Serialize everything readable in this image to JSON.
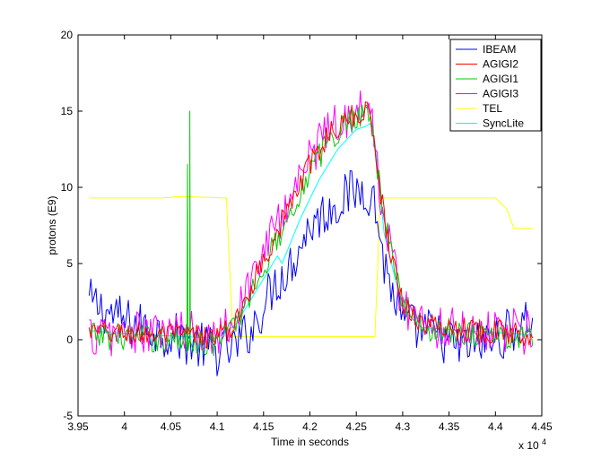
{
  "chart_data": {
    "type": "line",
    "title": "",
    "xlabel": "Time in seconds",
    "ylabel": "protons (E9)",
    "x_multiplier_label": "x 10",
    "x_multiplier_exp": "4",
    "xlim": [
      3.95,
      4.45
    ],
    "ylim": [
      -5,
      20
    ],
    "xticks": [
      3.95,
      4.0,
      4.05,
      4.1,
      4.15,
      4.2,
      4.25,
      4.3,
      4.35,
      4.4,
      4.45
    ],
    "xtick_labels": [
      "3.95",
      "4",
      "4.05",
      "4.1",
      "4.15",
      "4.2",
      "4.25",
      "4.3",
      "4.35",
      "4.4",
      "4.45"
    ],
    "yticks": [
      -5,
      0,
      5,
      10,
      15,
      20
    ],
    "ytick_labels": [
      "-5",
      "0",
      "5",
      "10",
      "15",
      "20"
    ],
    "grid": false,
    "legend_position": "top-right",
    "series": [
      {
        "name": "IBEAM",
        "color": "#0000ff",
        "noise": 1.6,
        "points": [
          [
            3.962,
            2.5
          ],
          [
            4.0,
            1.2
          ],
          [
            4.05,
            0.3
          ],
          [
            4.1,
            -0.8
          ],
          [
            4.12,
            -0.5
          ],
          [
            4.14,
            1.0
          ],
          [
            4.16,
            3.5
          ],
          [
            4.18,
            5.0
          ],
          [
            4.2,
            7.5
          ],
          [
            4.22,
            8.5
          ],
          [
            4.24,
            9.5
          ],
          [
            4.26,
            10.0
          ],
          [
            4.27,
            9.0
          ],
          [
            4.28,
            5.0
          ],
          [
            4.3,
            1.0
          ],
          [
            4.33,
            0.5
          ],
          [
            4.36,
            -0.5
          ],
          [
            4.4,
            0.0
          ],
          [
            4.44,
            1.5
          ]
        ]
      },
      {
        "name": "AGIGI2",
        "color": "#ff0000",
        "noise": 0.8,
        "points": [
          [
            3.962,
            0.5
          ],
          [
            4.1,
            0.2
          ],
          [
            4.12,
            1.0
          ],
          [
            4.14,
            4.0
          ],
          [
            4.16,
            6.5
          ],
          [
            4.18,
            9.0
          ],
          [
            4.2,
            11.5
          ],
          [
            4.22,
            13.5
          ],
          [
            4.25,
            14.8
          ],
          [
            4.265,
            15.0
          ],
          [
            4.28,
            8.0
          ],
          [
            4.29,
            5.0
          ],
          [
            4.3,
            2.5
          ],
          [
            4.32,
            1.0
          ],
          [
            4.44,
            0.3
          ]
        ]
      },
      {
        "name": "AGIGI1",
        "color": "#00cc00",
        "noise": 0.9,
        "points": [
          [
            3.962,
            0.3
          ],
          [
            4.1,
            -0.2
          ],
          [
            4.12,
            1.0
          ],
          [
            4.14,
            3.5
          ],
          [
            4.16,
            6.0
          ],
          [
            4.18,
            8.5
          ],
          [
            4.2,
            11.0
          ],
          [
            4.22,
            13.0
          ],
          [
            4.25,
            14.8
          ],
          [
            4.265,
            15.0
          ],
          [
            4.28,
            8.0
          ],
          [
            4.29,
            5.0
          ],
          [
            4.3,
            2.5
          ],
          [
            4.32,
            0.8
          ],
          [
            4.44,
            0.0
          ]
        ],
        "spikes": [
          [
            4.0705,
            15.0
          ],
          [
            4.068,
            11.5
          ]
        ]
      },
      {
        "name": "AGIGI3",
        "color": "#ff00ff",
        "noise": 1.5,
        "points": [
          [
            3.962,
            0.3
          ],
          [
            4.1,
            0.5
          ],
          [
            4.12,
            1.5
          ],
          [
            4.14,
            4.5
          ],
          [
            4.16,
            7.0
          ],
          [
            4.18,
            9.5
          ],
          [
            4.2,
            12.0
          ],
          [
            4.22,
            14.0
          ],
          [
            4.25,
            15.0
          ],
          [
            4.265,
            15.0
          ],
          [
            4.28,
            8.0
          ],
          [
            4.29,
            5.0
          ],
          [
            4.3,
            2.5
          ],
          [
            4.32,
            1.0
          ],
          [
            4.44,
            0.5
          ]
        ]
      },
      {
        "name": "TEL",
        "color": "#ffff00",
        "noise": 0,
        "points": [
          [
            3.962,
            9.3
          ],
          [
            4.04,
            9.3
          ],
          [
            4.06,
            9.4
          ],
          [
            4.11,
            9.3
          ],
          [
            4.117,
            0.2
          ],
          [
            4.27,
            0.2
          ],
          [
            4.276,
            9.3
          ],
          [
            4.4,
            9.3
          ],
          [
            4.412,
            8.6
          ],
          [
            4.42,
            7.3
          ],
          [
            4.44,
            7.3
          ]
        ]
      },
      {
        "name": "SyncLite",
        "color": "#00ffff",
        "noise": 0,
        "points": [
          [
            3.962,
            0.6
          ],
          [
            4.0,
            0.4
          ],
          [
            4.1,
            0.1
          ],
          [
            4.12,
            1.0
          ],
          [
            4.14,
            3.0
          ],
          [
            4.16,
            5.0
          ],
          [
            4.165,
            5.5
          ],
          [
            4.17,
            5.0
          ],
          [
            4.19,
            8.0
          ],
          [
            4.21,
            10.5
          ],
          [
            4.23,
            12.5
          ],
          [
            4.25,
            13.8
          ],
          [
            4.26,
            14.0
          ],
          [
            4.265,
            14.2
          ],
          [
            4.27,
            13.0
          ],
          [
            4.28,
            7.0
          ],
          [
            4.3,
            2.0
          ],
          [
            4.32,
            0.8
          ],
          [
            4.44,
            0.3
          ]
        ]
      }
    ]
  }
}
